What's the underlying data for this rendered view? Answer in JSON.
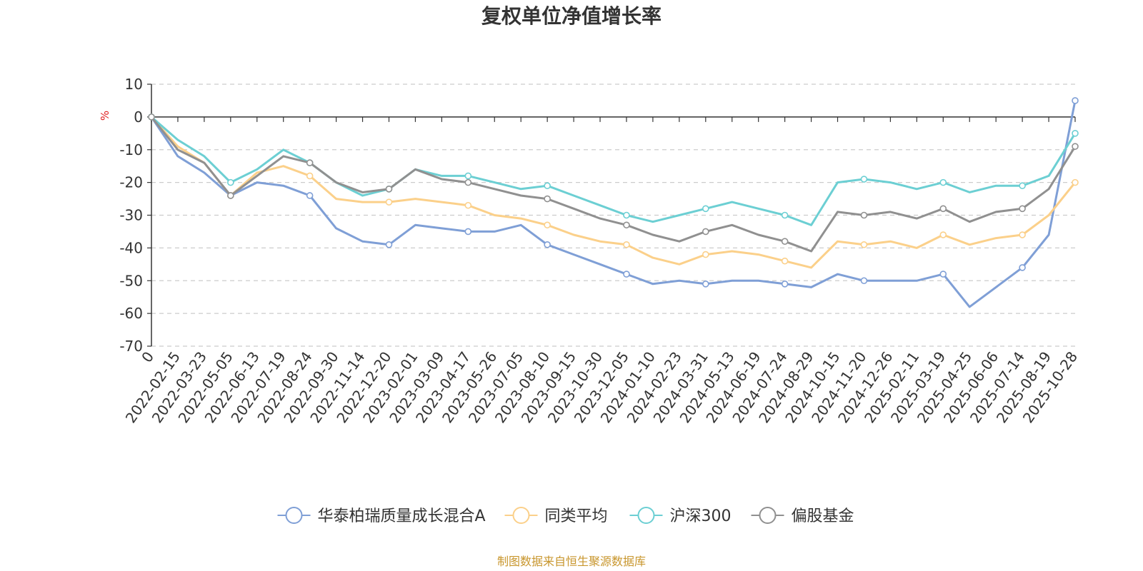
{
  "chart_data": {
    "type": "line",
    "title": "复权单位净值增长率",
    "ylabel": "%",
    "ylim": [
      -70,
      10
    ],
    "yticks": [
      10,
      0,
      -10,
      -20,
      -30,
      -40,
      -50,
      -60,
      -70
    ],
    "grid": "horizontal-dashed",
    "legend_position": "bottom",
    "x": [
      "0",
      "2022-02-15",
      "2022-03-23",
      "2022-05-05",
      "2022-06-13",
      "2022-07-19",
      "2022-08-24",
      "2022-09-30",
      "2022-11-14",
      "2022-12-20",
      "2023-02-01",
      "2023-03-09",
      "2023-04-17",
      "2023-05-26",
      "2023-07-05",
      "2023-08-10",
      "2023-09-15",
      "2023-10-30",
      "2023-12-05",
      "2024-01-10",
      "2024-02-23",
      "2024-03-31",
      "2024-05-13",
      "2024-06-19",
      "2024-07-24",
      "2024-08-29",
      "2024-10-15",
      "2024-11-20",
      "2024-12-26",
      "2025-02-11",
      "2025-03-19",
      "2025-04-25",
      "2025-06-06",
      "2025-07-14",
      "2025-08-19",
      "2025-10-28"
    ],
    "series": [
      {
        "name": "华泰柏瑞质量成长混合A",
        "color": "#7f9fd6",
        "values": [
          0,
          -12,
          -17,
          -24,
          -20,
          -21,
          -24,
          -34,
          -38,
          -39,
          -33,
          -34,
          -35,
          -35,
          -33,
          -39,
          -42,
          -45,
          -48,
          -51,
          -50,
          -51,
          -50,
          -50,
          -51,
          -52,
          -48,
          -50,
          -50,
          -50,
          -48,
          -58,
          -52,
          -46,
          -36,
          5
        ]
      },
      {
        "name": "同类平均",
        "color": "#fbd08a",
        "values": [
          0,
          -9,
          -14,
          -24,
          -17,
          -15,
          -18,
          -25,
          -26,
          -26,
          -25,
          -26,
          -27,
          -30,
          -31,
          -33,
          -36,
          -38,
          -39,
          -43,
          -45,
          -42,
          -41,
          -42,
          -44,
          -46,
          -38,
          -39,
          -38,
          -40,
          -36,
          -39,
          -37,
          -36,
          -30,
          -20
        ]
      },
      {
        "name": "沪深300",
        "color": "#6ccfd3",
        "values": [
          0,
          -7,
          -12,
          -20,
          -16,
          -10,
          -14,
          -20,
          -24,
          -22,
          -16,
          -18,
          -18,
          -20,
          -22,
          -21,
          -24,
          -27,
          -30,
          -32,
          -30,
          -28,
          -26,
          -28,
          -30,
          -33,
          -20,
          -19,
          -20,
          -22,
          -20,
          -23,
          -21,
          -21,
          -18,
          -5
        ]
      },
      {
        "name": "偏股基金",
        "color": "#909090",
        "values": [
          0,
          -10,
          -14,
          -24,
          -18,
          -12,
          -14,
          -20,
          -23,
          -22,
          -16,
          -19,
          -20,
          -22,
          -24,
          -25,
          -28,
          -31,
          -33,
          -36,
          -38,
          -35,
          -33,
          -36,
          -38,
          -41,
          -29,
          -30,
          -29,
          -31,
          -28,
          -32,
          -29,
          -28,
          -22,
          -9
        ]
      }
    ]
  },
  "legend": {
    "items": [
      "华泰柏瑞质量成长混合A",
      "同类平均",
      "沪深300",
      "偏股基金"
    ]
  },
  "footer": {
    "source": "制图数据来自恒生聚源数据库"
  }
}
